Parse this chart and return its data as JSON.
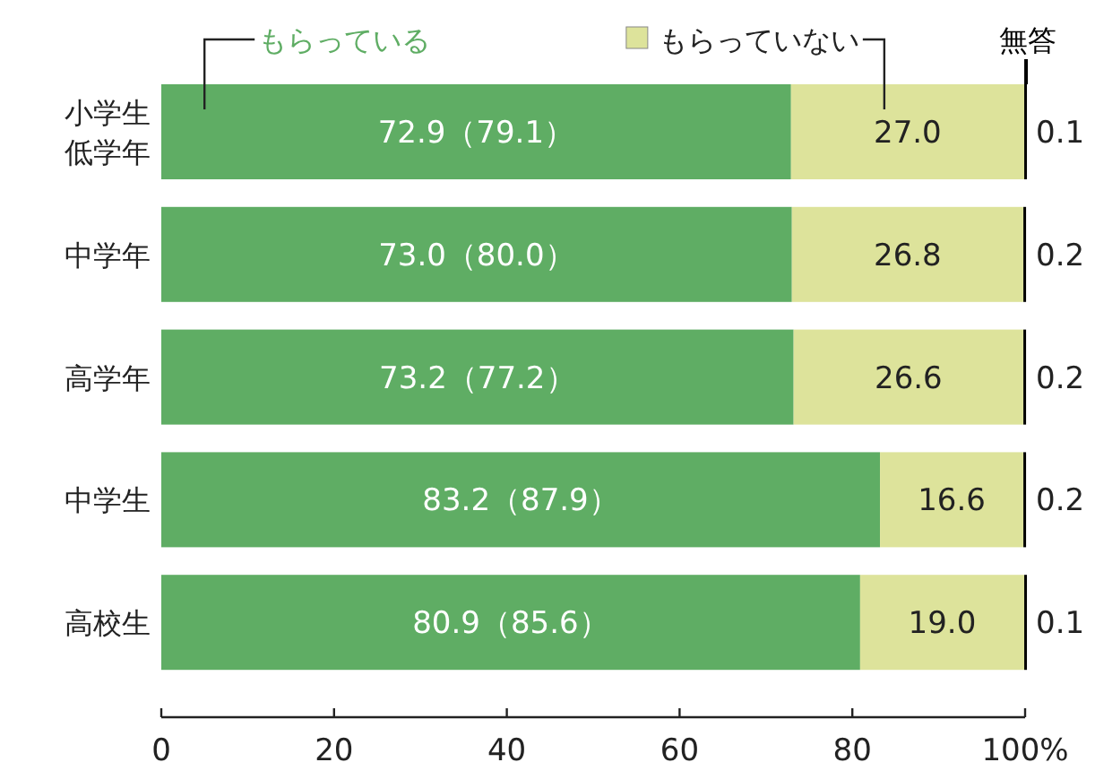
{
  "chart_data": {
    "type": "bar",
    "orientation": "horizontal",
    "stacked": true,
    "categories": [
      "小学生低学年",
      "中学年",
      "高学年",
      "中学生",
      "高校生"
    ],
    "series": [
      {
        "name": "もらっている",
        "color": "#5fad64",
        "values": [
          72.9,
          73.0,
          73.2,
          83.2,
          80.9
        ],
        "value_labels": [
          "72.9（79.1）",
          "73.0（80.0）",
          "73.2（77.2）",
          "83.2（87.9）",
          "80.9（85.6）"
        ]
      },
      {
        "name": "もらっていない",
        "color": "#dde39b",
        "values": [
          27.0,
          26.8,
          26.6,
          16.6,
          19.0
        ],
        "value_labels": [
          "27.0",
          "26.8",
          "26.6",
          "16.6",
          "19.0"
        ]
      },
      {
        "name": "無答",
        "color": "#000000",
        "values": [
          0.1,
          0.2,
          0.2,
          0.2,
          0.1
        ],
        "value_labels": [
          "0.1",
          "0.2",
          "0.2",
          "0.2",
          "0.1"
        ]
      }
    ],
    "xlim": [
      0,
      100
    ],
    "xticks": [
      0,
      20,
      40,
      60,
      80,
      {
        "value": 100,
        "label": "100%"
      }
    ]
  }
}
